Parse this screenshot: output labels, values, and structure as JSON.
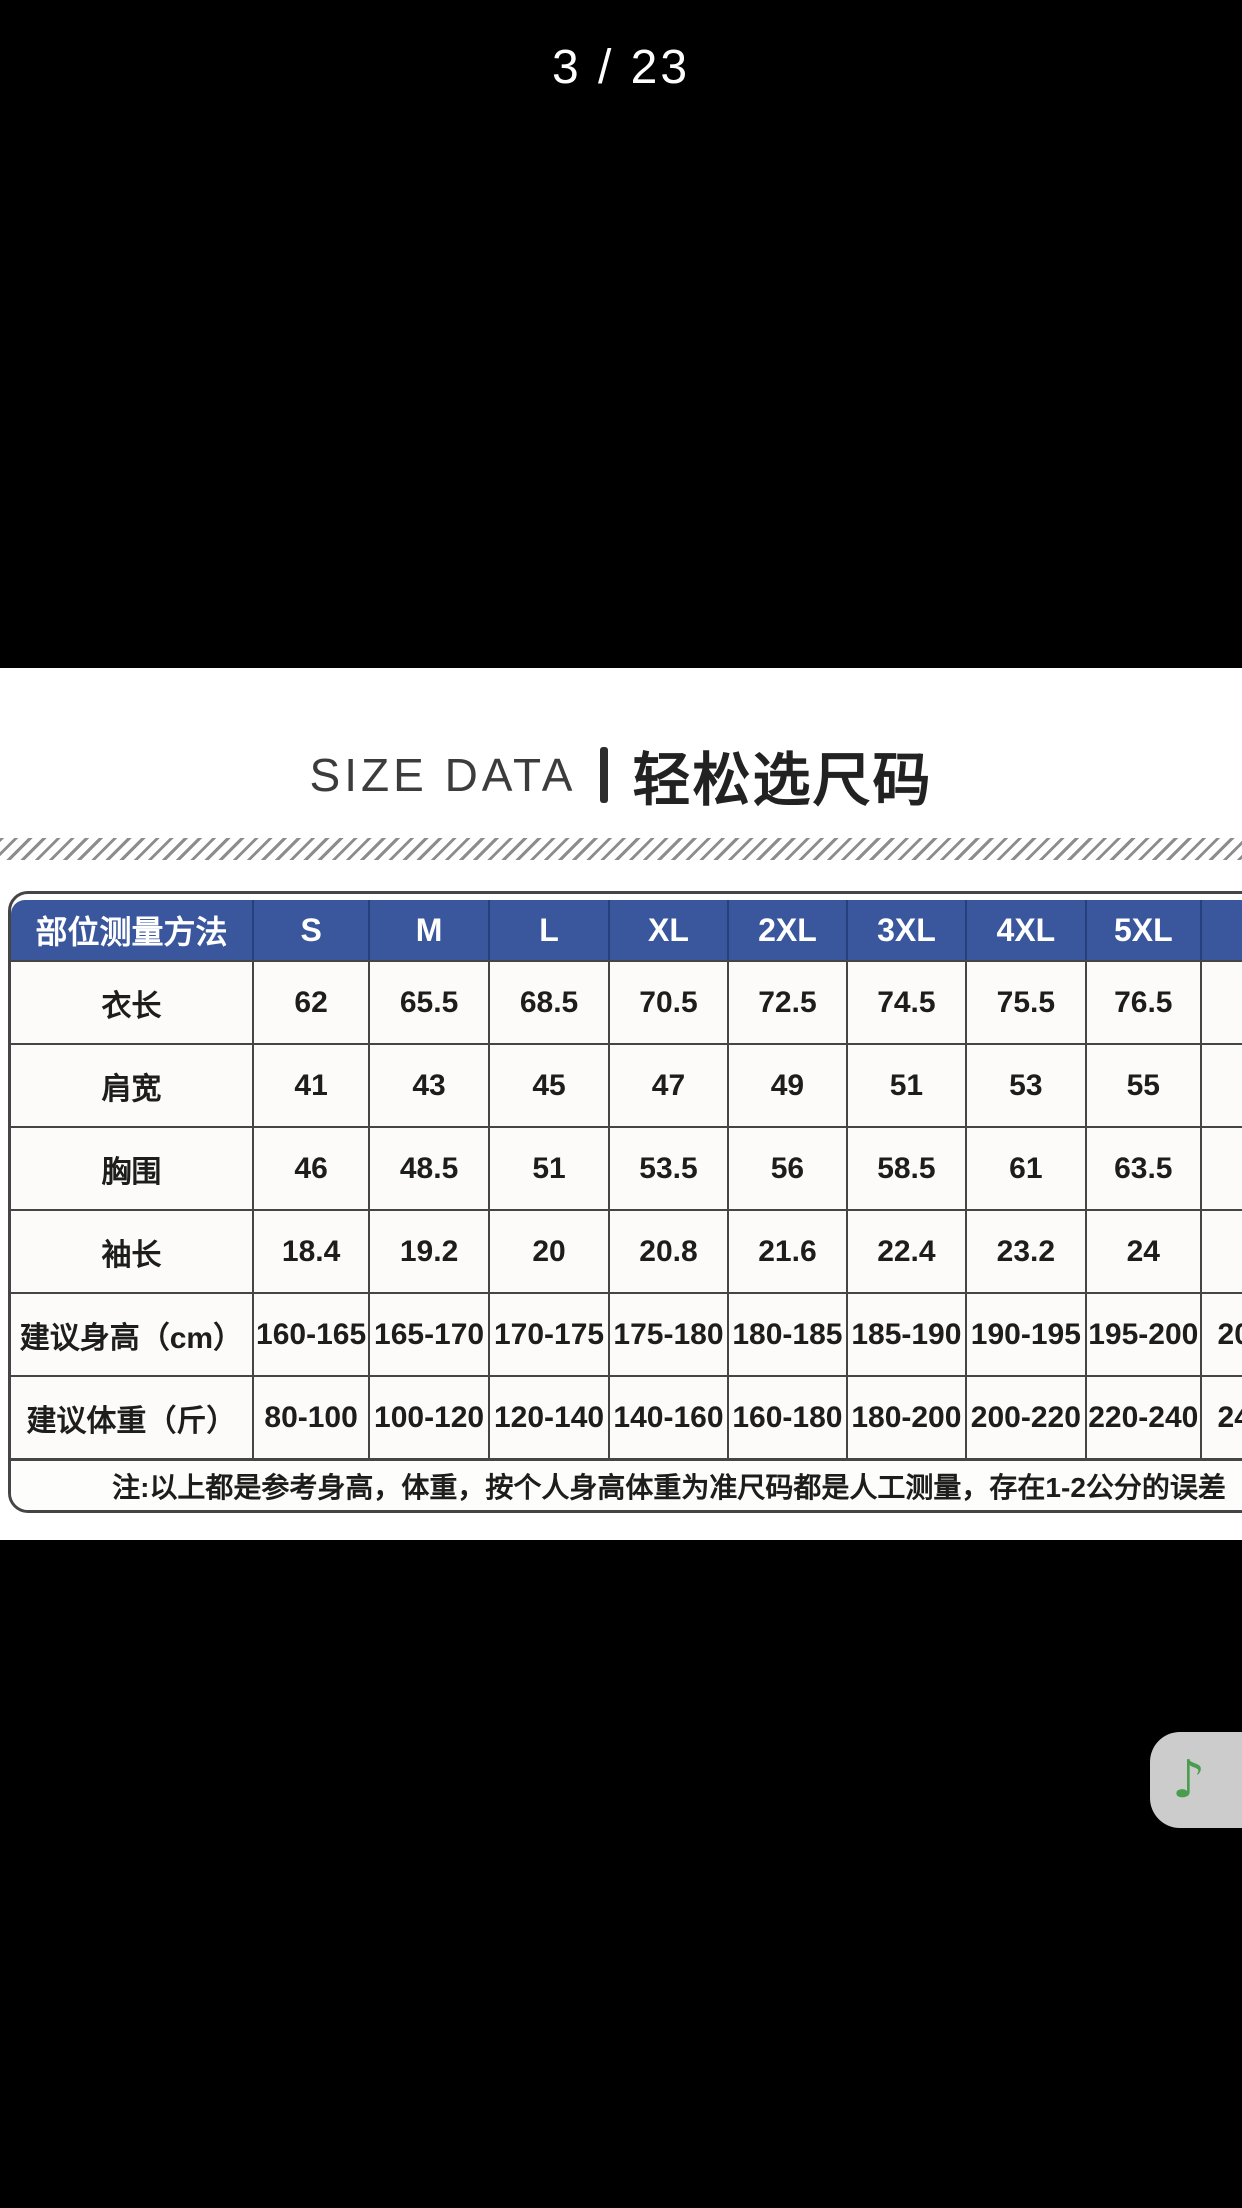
{
  "status_bar": {
    "page_indicator": "3 / 23"
  },
  "size_section": {
    "title_en": "SIZE DATA",
    "title_zh": "轻松选尺码",
    "table": {
      "columns": [
        "部位测量方法",
        "S",
        "M",
        "L",
        "XL",
        "2XL",
        "3XL",
        "4XL",
        "5XL",
        ""
      ],
      "rows": [
        {
          "label": "衣长",
          "values": [
            "62",
            "65.5",
            "68.5",
            "70.5",
            "72.5",
            "74.5",
            "75.5",
            "76.5",
            ""
          ]
        },
        {
          "label": "肩宽",
          "values": [
            "41",
            "43",
            "45",
            "47",
            "49",
            "51",
            "53",
            "55",
            ""
          ]
        },
        {
          "label": "胸围",
          "values": [
            "46",
            "48.5",
            "51",
            "53.5",
            "56",
            "58.5",
            "61",
            "63.5",
            ""
          ]
        },
        {
          "label": "袖长",
          "values": [
            "18.4",
            "19.2",
            "20",
            "20.8",
            "21.6",
            "22.4",
            "23.2",
            "24",
            ""
          ]
        },
        {
          "label": "建议身高（cm）",
          "values": [
            "160-165",
            "165-170",
            "170-175",
            "175-180",
            "180-185",
            "185-190",
            "190-195",
            "195-200",
            "20"
          ]
        },
        {
          "label": "建议体重（斤）",
          "values": [
            "80-100",
            "100-120",
            "120-140",
            "140-160",
            "160-180",
            "180-200",
            "200-220",
            "220-240",
            "24"
          ]
        }
      ],
      "note": "注:以上都是参考身高，体重，按个人身高体重为准尺码都是人工测量，存在1-2公分的误差"
    }
  },
  "music_button": {
    "icon": "music-note-icon",
    "glyph": "♪"
  },
  "colors": {
    "background": "#000000",
    "panel": "#ffffff",
    "header_blue": "#3a579d",
    "header_separator": "#26407e",
    "header_text": "#ffffff",
    "cell_border": "#454545",
    "cell_background": "#fcfbf9",
    "text": "#1d1d1d",
    "music_green": "#4a9d4e"
  }
}
